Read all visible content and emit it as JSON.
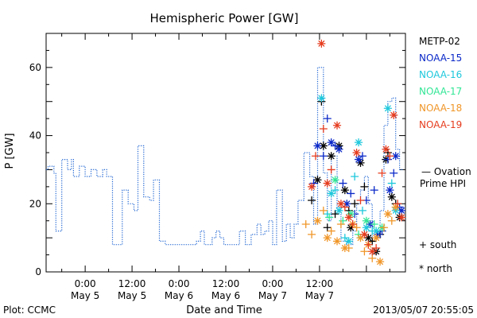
{
  "chart_data": {
    "type": "scatter",
    "title": "Hemispheric Power [GW]",
    "xlabel": "Date and Time",
    "ylabel": "P [GW]",
    "ylim": [
      0,
      70
    ],
    "xlim_hours": [
      -10,
      82
    ],
    "x_ticks": [
      {
        "h": 0,
        "time": "0:00",
        "day": "May 5"
      },
      {
        "h": 12,
        "time": "12:00",
        "day": "May 5"
      },
      {
        "h": 24,
        "time": "0:00",
        "day": "May 6"
      },
      {
        "h": 36,
        "time": "12:00",
        "day": "May 6"
      },
      {
        "h": 48,
        "time": "0:00",
        "day": "May 7"
      },
      {
        "h": 60,
        "time": "12:00",
        "day": "May 7"
      }
    ],
    "y_ticks": [
      0,
      20,
      40,
      60
    ],
    "grid": false,
    "legend_position": "right",
    "footer_left": "Plot: CCMC",
    "footer_right": "2013/05/07 20:55:05",
    "ovation": {
      "name_line1": "— Ovation",
      "name_line2": "Prime HPI",
      "color": "#1e64d2",
      "points": [
        [
          -10,
          30
        ],
        [
          -9.5,
          31
        ],
        [
          -8.5,
          31
        ],
        [
          -8,
          29
        ],
        [
          -7.5,
          12
        ],
        [
          -6.5,
          12
        ],
        [
          -6,
          33
        ],
        [
          -5,
          33
        ],
        [
          -4.5,
          30
        ],
        [
          -4,
          30
        ],
        [
          -3.5,
          33
        ],
        [
          -3,
          28
        ],
        [
          -2,
          28
        ],
        [
          -1.5,
          31
        ],
        [
          -0.5,
          31
        ],
        [
          0,
          28
        ],
        [
          1,
          28
        ],
        [
          1.5,
          30
        ],
        [
          2.5,
          30
        ],
        [
          3,
          28
        ],
        [
          4,
          28
        ],
        [
          4.5,
          30
        ],
        [
          5,
          30
        ],
        [
          5.5,
          28
        ],
        [
          6.5,
          28
        ],
        [
          7,
          8
        ],
        [
          9,
          8
        ],
        [
          9.5,
          24
        ],
        [
          10.5,
          24
        ],
        [
          11,
          20
        ],
        [
          12,
          20
        ],
        [
          12.5,
          18
        ],
        [
          13,
          18
        ],
        [
          13.5,
          37
        ],
        [
          14.5,
          37
        ],
        [
          15,
          22
        ],
        [
          16,
          22
        ],
        [
          16.5,
          21
        ],
        [
          17,
          21
        ],
        [
          17.5,
          27
        ],
        [
          18.5,
          27
        ],
        [
          19,
          9
        ],
        [
          20,
          9
        ],
        [
          20.5,
          8
        ],
        [
          28,
          8
        ],
        [
          28.5,
          9
        ],
        [
          29,
          9
        ],
        [
          29.5,
          12
        ],
        [
          30,
          12
        ],
        [
          30.5,
          8
        ],
        [
          32,
          8
        ],
        [
          32.5,
          10
        ],
        [
          33,
          10
        ],
        [
          33.5,
          12
        ],
        [
          34,
          12
        ],
        [
          34.5,
          10
        ],
        [
          35,
          10
        ],
        [
          35.5,
          8
        ],
        [
          39,
          8
        ],
        [
          39.5,
          12
        ],
        [
          40.5,
          12
        ],
        [
          41,
          8
        ],
        [
          42,
          8
        ],
        [
          42.5,
          11
        ],
        [
          43.5,
          11
        ],
        [
          44,
          14
        ],
        [
          44.5,
          14
        ],
        [
          45,
          11
        ],
        [
          45.5,
          11
        ],
        [
          46,
          12
        ],
        [
          46.5,
          12
        ],
        [
          47,
          15
        ],
        [
          47.5,
          15
        ],
        [
          48,
          8
        ],
        [
          48.5,
          8
        ],
        [
          49,
          24
        ],
        [
          50,
          24
        ],
        [
          50.5,
          9
        ],
        [
          51,
          9
        ],
        [
          51.5,
          14
        ],
        [
          52,
          14
        ],
        [
          52.5,
          10
        ],
        [
          53,
          10
        ],
        [
          53.5,
          14
        ],
        [
          54,
          14
        ],
        [
          54.5,
          21
        ],
        [
          55.5,
          21
        ],
        [
          56,
          35
        ],
        [
          57,
          35
        ],
        [
          57.5,
          28
        ],
        [
          58,
          28
        ],
        [
          58.5,
          14
        ],
        [
          59,
          14
        ],
        [
          59.5,
          60
        ],
        [
          60.5,
          60
        ],
        [
          61,
          29
        ],
        [
          61.5,
          29
        ],
        [
          62,
          15
        ],
        [
          62.5,
          15
        ],
        [
          63,
          34
        ],
        [
          64,
          34
        ],
        [
          64.5,
          19
        ],
        [
          65,
          19
        ],
        [
          65.5,
          9
        ],
        [
          66.5,
          9
        ],
        [
          67,
          8
        ],
        [
          68,
          8
        ],
        [
          68.5,
          12
        ],
        [
          69,
          12
        ],
        [
          69.5,
          20
        ],
        [
          70,
          20
        ],
        [
          70.5,
          24
        ],
        [
          71,
          24
        ],
        [
          71.5,
          28
        ],
        [
          72,
          28
        ],
        [
          72.5,
          20
        ],
        [
          73,
          20
        ],
        [
          73.5,
          9
        ],
        [
          74,
          9
        ],
        [
          74.5,
          12
        ],
        [
          75,
          12
        ],
        [
          75.5,
          18
        ],
        [
          76,
          18
        ],
        [
          76.5,
          43
        ],
        [
          77,
          43
        ],
        [
          77.5,
          50
        ],
        [
          78,
          50
        ],
        [
          78.5,
          51
        ],
        [
          79,
          51
        ],
        [
          79.5,
          36
        ],
        [
          80,
          36
        ],
        [
          80.5,
          30
        ],
        [
          81,
          30
        ],
        [
          81.5,
          30
        ]
      ]
    },
    "satellites": [
      {
        "name": "METP-02",
        "color": "#000000",
        "points": [
          {
            "x": 58,
            "y": 21,
            "m": "+"
          },
          {
            "x": 59.5,
            "y": 27,
            "m": "*"
          },
          {
            "x": 60.5,
            "y": 50,
            "m": "+"
          },
          {
            "x": 61,
            "y": 37,
            "m": "*"
          },
          {
            "x": 62,
            "y": 13,
            "m": "+"
          },
          {
            "x": 63,
            "y": 34,
            "m": "*"
          },
          {
            "x": 64,
            "y": 17,
            "m": "+"
          },
          {
            "x": 65,
            "y": 37,
            "m": "*"
          },
          {
            "x": 66.5,
            "y": 24,
            "m": "*"
          },
          {
            "x": 67.5,
            "y": 18,
            "m": "+"
          },
          {
            "x": 68,
            "y": 13,
            "m": "*"
          },
          {
            "x": 69,
            "y": 20,
            "m": "+"
          },
          {
            "x": 70.5,
            "y": 32,
            "m": "*"
          },
          {
            "x": 71.5,
            "y": 25,
            "m": "+"
          },
          {
            "x": 72.5,
            "y": 10,
            "m": "*"
          },
          {
            "x": 73.5,
            "y": 9,
            "m": "+"
          },
          {
            "x": 74.5,
            "y": 6,
            "m": "*"
          },
          {
            "x": 75.5,
            "y": 11,
            "m": "+"
          },
          {
            "x": 77,
            "y": 33,
            "m": "*"
          },
          {
            "x": 77.5,
            "y": 35,
            "m": "+"
          },
          {
            "x": 78.5,
            "y": 22,
            "m": "*"
          },
          {
            "x": 79.5,
            "y": 20,
            "m": "+"
          },
          {
            "x": 80.5,
            "y": 16,
            "m": "*"
          }
        ]
      },
      {
        "name": "NOAA-15",
        "color": "#0a28c8",
        "points": [
          {
            "x": 58.5,
            "y": 26,
            "m": "+"
          },
          {
            "x": 59.5,
            "y": 37,
            "m": "*"
          },
          {
            "x": 61,
            "y": 34,
            "m": "+"
          },
          {
            "x": 62,
            "y": 45,
            "m": "+"
          },
          {
            "x": 63,
            "y": 38,
            "m": "*"
          },
          {
            "x": 64,
            "y": 37,
            "m": "+"
          },
          {
            "x": 65,
            "y": 36,
            "m": "*"
          },
          {
            "x": 66,
            "y": 26,
            "m": "+"
          },
          {
            "x": 67,
            "y": 20,
            "m": "*"
          },
          {
            "x": 68,
            "y": 23,
            "m": "+"
          },
          {
            "x": 69,
            "y": 17,
            "m": "+"
          },
          {
            "x": 70,
            "y": 33,
            "m": "*"
          },
          {
            "x": 71,
            "y": 34,
            "m": "+"
          },
          {
            "x": 72,
            "y": 21,
            "m": "+"
          },
          {
            "x": 73,
            "y": 14,
            "m": "*"
          },
          {
            "x": 74,
            "y": 24,
            "m": "+"
          },
          {
            "x": 75,
            "y": 11,
            "m": "*"
          },
          {
            "x": 76,
            "y": 12,
            "m": "+"
          },
          {
            "x": 77.5,
            "y": 33,
            "m": "+"
          },
          {
            "x": 78,
            "y": 24,
            "m": "*"
          },
          {
            "x": 79,
            "y": 29,
            "m": "+"
          },
          {
            "x": 79.5,
            "y": 34,
            "m": "*"
          },
          {
            "x": 80.5,
            "y": 19,
            "m": "+"
          },
          {
            "x": 81,
            "y": 18,
            "m": "*"
          }
        ]
      },
      {
        "name": "NOAA-16",
        "color": "#1ec8dc",
        "points": [
          {
            "x": 60.5,
            "y": 51,
            "m": "*"
          },
          {
            "x": 62,
            "y": 17,
            "m": "+"
          },
          {
            "x": 63,
            "y": 23,
            "m": "*"
          },
          {
            "x": 64,
            "y": 24,
            "m": "+"
          },
          {
            "x": 65,
            "y": 18,
            "m": "*"
          },
          {
            "x": 66.5,
            "y": 10,
            "m": "+"
          },
          {
            "x": 67.5,
            "y": 9,
            "m": "*"
          },
          {
            "x": 69,
            "y": 28,
            "m": "+"
          },
          {
            "x": 70,
            "y": 38,
            "m": "*"
          },
          {
            "x": 71,
            "y": 18,
            "m": "+"
          },
          {
            "x": 72,
            "y": 13,
            "m": "*"
          },
          {
            "x": 73.5,
            "y": 12,
            "m": "+"
          },
          {
            "x": 74.5,
            "y": 12,
            "m": "*"
          },
          {
            "x": 77.5,
            "y": 48,
            "m": "*"
          },
          {
            "x": 78.5,
            "y": 26,
            "m": "+"
          },
          {
            "x": 79.5,
            "y": 18,
            "m": "*"
          }
        ]
      },
      {
        "name": "NOAA-17",
        "color": "#32e696",
        "points": [
          {
            "x": 62.5,
            "y": 16,
            "m": "+"
          },
          {
            "x": 64,
            "y": 27,
            "m": "*"
          },
          {
            "x": 66,
            "y": 15,
            "m": "+"
          },
          {
            "x": 68,
            "y": 17,
            "m": "*"
          },
          {
            "x": 70,
            "y": 11,
            "m": "+"
          },
          {
            "x": 72,
            "y": 15,
            "m": "*"
          },
          {
            "x": 74,
            "y": 14,
            "m": "+"
          },
          {
            "x": 76,
            "y": 13,
            "m": "*"
          }
        ]
      },
      {
        "name": "NOAA-18",
        "color": "#f09628",
        "points": [
          {
            "x": 56.5,
            "y": 14,
            "m": "+"
          },
          {
            "x": 58,
            "y": 11,
            "m": "+"
          },
          {
            "x": 59.5,
            "y": 15,
            "m": "*"
          },
          {
            "x": 61,
            "y": 18,
            "m": "+"
          },
          {
            "x": 62,
            "y": 10,
            "m": "*"
          },
          {
            "x": 63,
            "y": 12,
            "m": "+"
          },
          {
            "x": 64.5,
            "y": 9,
            "m": "*"
          },
          {
            "x": 65.5,
            "y": 14,
            "m": "+"
          },
          {
            "x": 66.5,
            "y": 7,
            "m": "*"
          },
          {
            "x": 67.5,
            "y": 7,
            "m": "+"
          },
          {
            "x": 68.5,
            "y": 14,
            "m": "*"
          },
          {
            "x": 69.5,
            "y": 13,
            "m": "+"
          },
          {
            "x": 70.5,
            "y": 10,
            "m": "*"
          },
          {
            "x": 71.5,
            "y": 6,
            "m": "+"
          },
          {
            "x": 72.5,
            "y": 8,
            "m": "*"
          },
          {
            "x": 73.5,
            "y": 4,
            "m": "+"
          },
          {
            "x": 74.5,
            "y": 10,
            "m": "*"
          },
          {
            "x": 75.5,
            "y": 3,
            "m": "*"
          },
          {
            "x": 76.5,
            "y": 13,
            "m": "+"
          },
          {
            "x": 77.5,
            "y": 17,
            "m": "*"
          },
          {
            "x": 78.5,
            "y": 15,
            "m": "+"
          },
          {
            "x": 79.5,
            "y": 19,
            "m": "*"
          }
        ]
      },
      {
        "name": "NOAA-19",
        "color": "#e63c1e",
        "points": [
          {
            "x": 58,
            "y": 25,
            "m": "*"
          },
          {
            "x": 59,
            "y": 34,
            "m": "+"
          },
          {
            "x": 60.5,
            "y": 67,
            "m": "*"
          },
          {
            "x": 61,
            "y": 42,
            "m": "+"
          },
          {
            "x": 62,
            "y": 26,
            "m": "*"
          },
          {
            "x": 63,
            "y": 30,
            "m": "+"
          },
          {
            "x": 64.5,
            "y": 43,
            "m": "*"
          },
          {
            "x": 65.5,
            "y": 20,
            "m": "*"
          },
          {
            "x": 66.5,
            "y": 19,
            "m": "+"
          },
          {
            "x": 67.5,
            "y": 16,
            "m": "*"
          },
          {
            "x": 68.5,
            "y": 14,
            "m": "+"
          },
          {
            "x": 69.5,
            "y": 35,
            "m": "*"
          },
          {
            "x": 70.5,
            "y": 21,
            "m": "+"
          },
          {
            "x": 71.5,
            "y": 11,
            "m": "*"
          },
          {
            "x": 72.5,
            "y": 8,
            "m": "+"
          },
          {
            "x": 73.5,
            "y": 6,
            "m": "*"
          },
          {
            "x": 74.5,
            "y": 7,
            "m": "+"
          },
          {
            "x": 76,
            "y": 29,
            "m": "+"
          },
          {
            "x": 77,
            "y": 36,
            "m": "*"
          },
          {
            "x": 78,
            "y": 34,
            "m": "+"
          },
          {
            "x": 79,
            "y": 46,
            "m": "*"
          },
          {
            "x": 80,
            "y": 20,
            "m": "+"
          },
          {
            "x": 81,
            "y": 16,
            "m": "*"
          }
        ]
      }
    ],
    "marker_key": [
      {
        "symbol": "+",
        "label": "south"
      },
      {
        "symbol": "*",
        "label": "north"
      }
    ]
  }
}
